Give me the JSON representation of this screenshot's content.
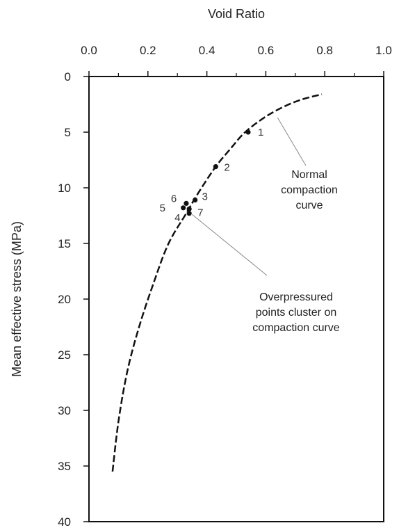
{
  "chart_data": {
    "type": "scatter",
    "title": "",
    "xlabel": "Void Ratio",
    "ylabel": "Mean effective stress (MPa)",
    "xlim": [
      0.0,
      1.0
    ],
    "ylim": [
      0,
      40
    ],
    "x_axis_position": "top",
    "y_axis_inverted": true,
    "x_ticks": [
      "0.0",
      "0.2",
      "0.4",
      "0.6",
      "0.8",
      "1.0"
    ],
    "y_ticks": [
      "0",
      "5",
      "10",
      "15",
      "20",
      "25",
      "30",
      "35",
      "40"
    ],
    "grid": false,
    "series": [
      {
        "kind": "dashed-line",
        "points": [
          {
            "x": 0.08,
            "y": 35.5
          },
          {
            "x": 0.1,
            "y": 31.0
          },
          {
            "x": 0.13,
            "y": 26.5
          },
          {
            "x": 0.17,
            "y": 22.5
          },
          {
            "x": 0.22,
            "y": 18.5
          },
          {
            "x": 0.27,
            "y": 15.0
          },
          {
            "x": 0.33,
            "y": 12.3
          },
          {
            "x": 0.37,
            "y": 10.5
          },
          {
            "x": 0.43,
            "y": 8.1
          },
          {
            "x": 0.48,
            "y": 6.5
          },
          {
            "x": 0.53,
            "y": 5.0
          },
          {
            "x": 0.6,
            "y": 3.6
          },
          {
            "x": 0.67,
            "y": 2.6
          },
          {
            "x": 0.73,
            "y": 2.0
          },
          {
            "x": 0.79,
            "y": 1.6
          }
        ]
      },
      {
        "kind": "points",
        "points": [
          {
            "label": "1",
            "x": 0.54,
            "y": 5.0
          },
          {
            "label": "2",
            "x": 0.43,
            "y": 8.1
          },
          {
            "label": "3",
            "x": 0.36,
            "y": 11.1
          },
          {
            "label": "4",
            "x": 0.34,
            "y": 12.3
          },
          {
            "label": "5",
            "x": 0.32,
            "y": 11.8
          },
          {
            "label": "6",
            "x": 0.33,
            "y": 11.4
          },
          {
            "label": "7",
            "x": 0.34,
            "y": 11.9
          }
        ]
      }
    ],
    "annotations": [
      {
        "lines": [
          "Normal",
          "compaction",
          "curve"
        ],
        "pointer": {
          "x": 0.64,
          "y": 3.7
        }
      },
      {
        "lines": [
          "Overpressured",
          "points cluster on",
          "compaction curve"
        ],
        "pointer": {
          "x": 0.35,
          "y": 12.4
        }
      }
    ]
  }
}
